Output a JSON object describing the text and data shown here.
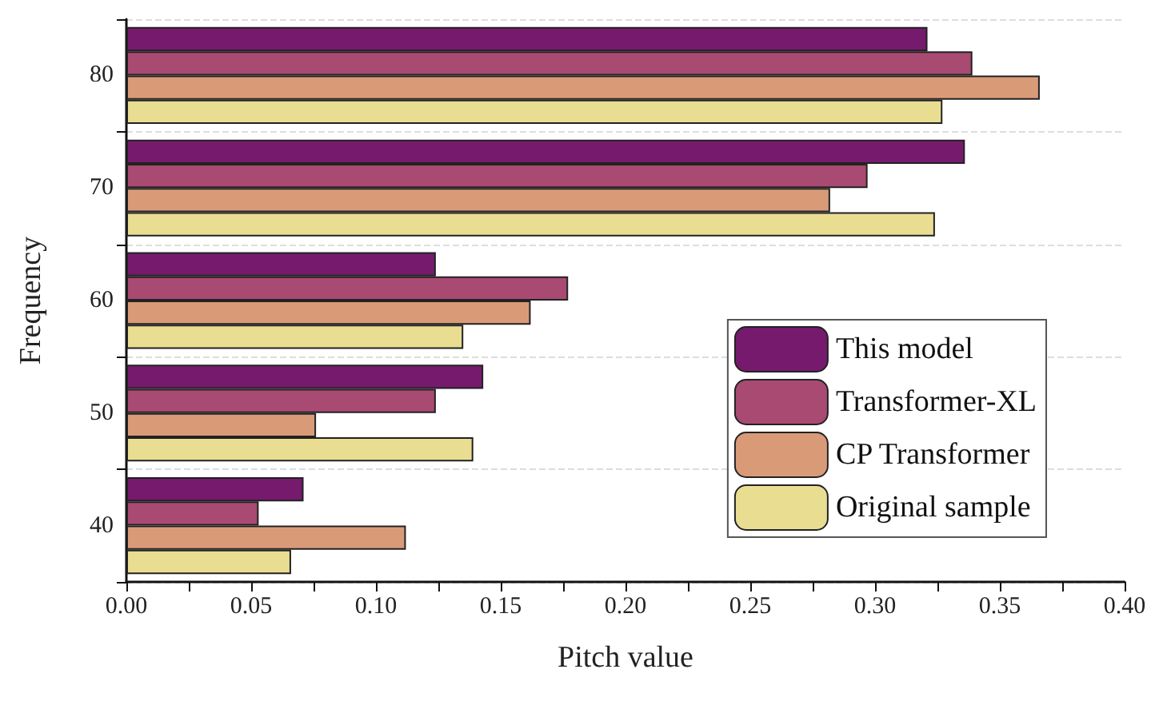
{
  "chart_data": {
    "type": "bar",
    "orientation": "horizontal",
    "xlabel": "Pitch value",
    "ylabel": "Frequency",
    "categories": [
      "80",
      "70",
      "60",
      "50",
      "40"
    ],
    "series": [
      {
        "name": "This model",
        "color": "#761a6e",
        "values": [
          0.321,
          0.336,
          0.124,
          0.143,
          0.071
        ]
      },
      {
        "name": "Transformer-XL",
        "color": "#a84a72",
        "values": [
          0.339,
          0.297,
          0.177,
          0.124,
          0.053
        ]
      },
      {
        "name": "CP Transformer",
        "color": "#d99a78",
        "values": [
          0.366,
          0.282,
          0.162,
          0.076,
          0.112
        ]
      },
      {
        "name": "Original sample",
        "color": "#e9dd92",
        "values": [
          0.327,
          0.324,
          0.135,
          0.139,
          0.066
        ]
      }
    ],
    "xlim": [
      0,
      0.4
    ],
    "xticks": [
      {
        "value": 0,
        "label": "0.00"
      },
      {
        "value": 0.05,
        "label": "0.05"
      },
      {
        "value": 0.1,
        "label": "0.10"
      },
      {
        "value": 0.15,
        "label": "0.15"
      },
      {
        "value": 0.2,
        "label": "0.20"
      },
      {
        "value": 0.25,
        "label": "0.25"
      },
      {
        "value": 0.3,
        "label": "0.30"
      },
      {
        "value": 0.35,
        "label": "0.35"
      },
      {
        "value": 0.4,
        "label": "0.40"
      }
    ],
    "grid": "y",
    "legend": "bottom right"
  }
}
